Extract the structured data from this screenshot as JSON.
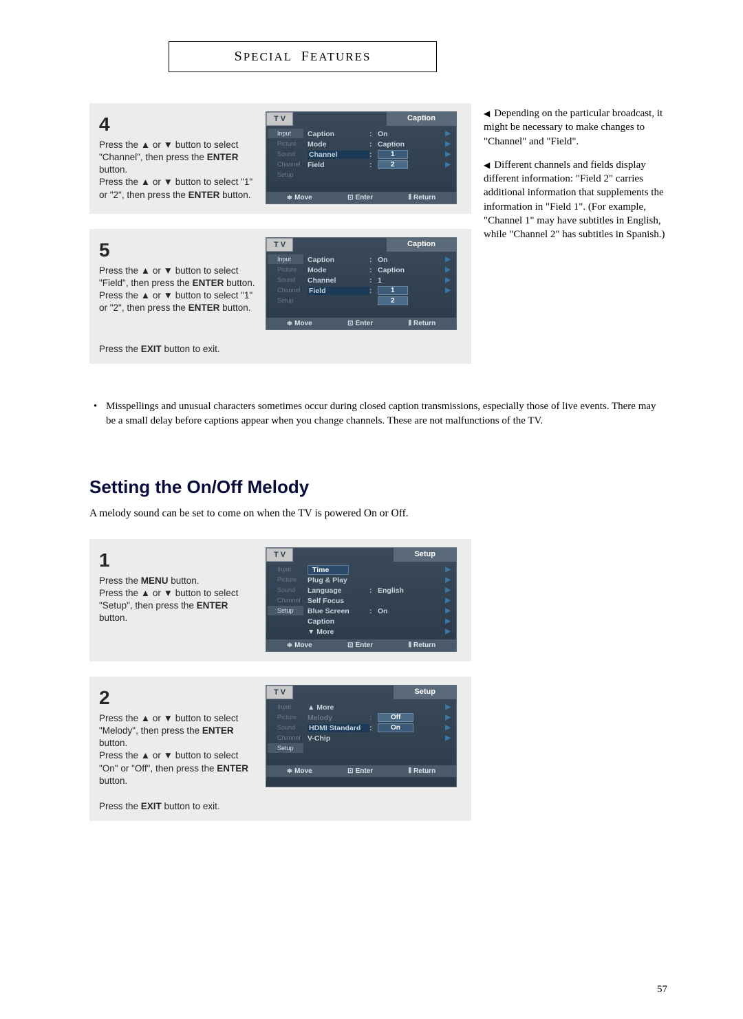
{
  "chapter": "Special Features",
  "side_notes": [
    "Depending on the particular broadcast, it might be necessary to make changes to \"Channel\" and \"Field\".",
    "Different channels and fields display different information: \"Field 2\" carries additional information that supplements the information in \"Field 1\". (For example, \"Channel 1\" may have subtitles in English, while \"Channel 2\" has subtitles in Spanish.)"
  ],
  "step4": {
    "num": "4",
    "lines": [
      "Press the ▲ or ▼ button to select \"Channel\", then press the <b>ENTER</b> button.",
      "Press the ▲ or ▼ button to select \"1\" or \"2\", then press the <b>ENTER</b> button."
    ],
    "osd": {
      "title": "Caption",
      "tabs": [
        "Input",
        "Picture",
        "Sound",
        "Channel",
        "Setup"
      ],
      "active_tab": 0,
      "rows": [
        {
          "label": "Caption",
          "val": "On",
          "type": "text"
        },
        {
          "label": "Mode",
          "val": "Caption",
          "type": "text"
        },
        {
          "label": "Channel",
          "val": "1",
          "type": "box_sel"
        },
        {
          "label": "Field",
          "val": "2",
          "type": "box"
        }
      ],
      "footer": [
        "Move",
        "Enter",
        "Return"
      ]
    }
  },
  "step5": {
    "num": "5",
    "lines": [
      "Press the ▲ or ▼ button to select \"Field\", then press the <b>ENTER</b> button.",
      "Press the ▲ or ▼ button to select \"1\" or \"2\", then press the <b>ENTER</b> button."
    ],
    "exit": "Press the <b>EXIT</b> button to exit.",
    "osd": {
      "title": "Caption",
      "tabs": [
        "Input",
        "Picture",
        "Sound",
        "Channel",
        "Setup"
      ],
      "active_tab": 0,
      "rows": [
        {
          "label": "Caption",
          "val": "On",
          "type": "text"
        },
        {
          "label": "Mode",
          "val": "Caption",
          "type": "text"
        },
        {
          "label": "Channel",
          "val": "1",
          "type": "text"
        },
        {
          "label": "Field",
          "val": "1",
          "type": "box_sel",
          "below": "2"
        }
      ],
      "footer": [
        "Move",
        "Enter",
        "Return"
      ]
    }
  },
  "bullet_note": "Misspellings and unusual characters sometimes occur during closed caption transmissions, especially those of live events. There may be a small delay before captions appear when you change channels. These are not malfunctions of the TV.",
  "section2": {
    "title": "Setting the On/Off Melody",
    "intro": "A melody sound can be set to come on when the TV is powered On or Off."
  },
  "stepA": {
    "num": "1",
    "lines": [
      "Press the <b>MENU</b> button.",
      "Press the ▲ or ▼ button to select \"Setup\", then press the <b>ENTER</b> button."
    ],
    "osd": {
      "title": "Setup",
      "tabs": [
        "Input",
        "Picture",
        "Sound",
        "Channel",
        "Setup"
      ],
      "active_tab": 4,
      "rows": [
        {
          "label": "Time",
          "type": "timebox"
        },
        {
          "label": "Plug & Play",
          "type": "plain"
        },
        {
          "label": "Language",
          "val": "English",
          "type": "text"
        },
        {
          "label": "Self Focus",
          "type": "plain"
        },
        {
          "label": "Blue Screen",
          "val": "On",
          "type": "text"
        },
        {
          "label": "Caption",
          "type": "plain"
        },
        {
          "label": "▼ More",
          "type": "plain"
        }
      ],
      "footer": [
        "Move",
        "Enter",
        "Return"
      ]
    }
  },
  "stepB": {
    "num": "2",
    "lines": [
      "Press the ▲ or ▼ button to select \"Melody\", then press the <b>ENTER</b> button.",
      "Press the ▲ or ▼ button to select \"On\" or \"Off\", then press the <b>ENTER</b> button."
    ],
    "exit": "Press the <b>EXIT</b> button to exit.",
    "osd": {
      "title": "Setup",
      "tabs": [
        "Input",
        "Picture",
        "Sound",
        "Channel",
        "Setup"
      ],
      "active_tab": 4,
      "rows": [
        {
          "label": "▲ More",
          "type": "plain"
        },
        {
          "label": "Melody",
          "val": "Off",
          "type": "box",
          "dim": true
        },
        {
          "label": "HDMI Standard",
          "val": "On",
          "type": "box_sel"
        },
        {
          "label": "V-Chip",
          "type": "plain"
        }
      ],
      "footer": [
        "Move",
        "Enter",
        "Return"
      ]
    }
  },
  "page_number": "57"
}
